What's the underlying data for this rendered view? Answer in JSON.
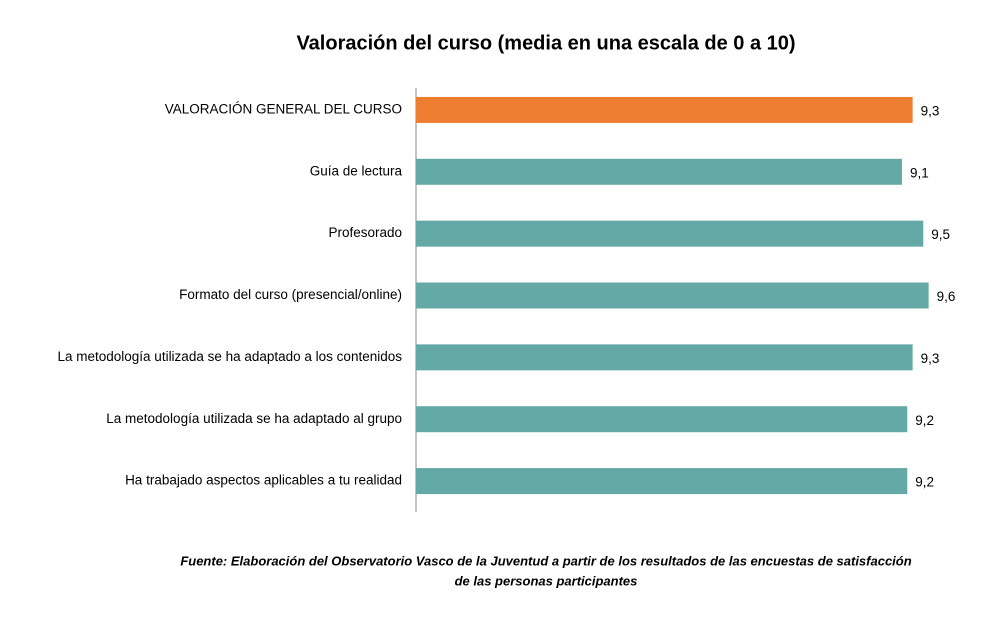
{
  "chart_data": {
    "type": "bar",
    "orientation": "horizontal",
    "title": "Valoración del curso (media en una escala de 0 a 10)",
    "categories": [
      "VALORACIÓN GENERAL DEL CURSO",
      "Guía de lectura",
      "Profesorado",
      "Formato del curso (presencial/online)",
      "La metodología utilizada se ha adaptado a los contenidos",
      "La metodología utilizada se ha adaptado al grupo",
      "Ha trabajado aspectos aplicables a tu realidad"
    ],
    "values": [
      9.3,
      9.1,
      9.5,
      9.6,
      9.3,
      9.2,
      9.2
    ],
    "value_labels": [
      "9,3",
      "9,1",
      "9,5",
      "9,6",
      "9,3",
      "9,2",
      "9,2"
    ],
    "colors": [
      "#ed7d31",
      "#64a9a6",
      "#64a9a6",
      "#64a9a6",
      "#64a9a6",
      "#64a9a6",
      "#64a9a6"
    ],
    "xlim": [
      0,
      10
    ],
    "note": [
      "Fuente: Elaboración del Observatorio Vasco de la Juventud a partir de los resultados de las encuestas de satisfacción",
      "de las personas participantes"
    ]
  }
}
